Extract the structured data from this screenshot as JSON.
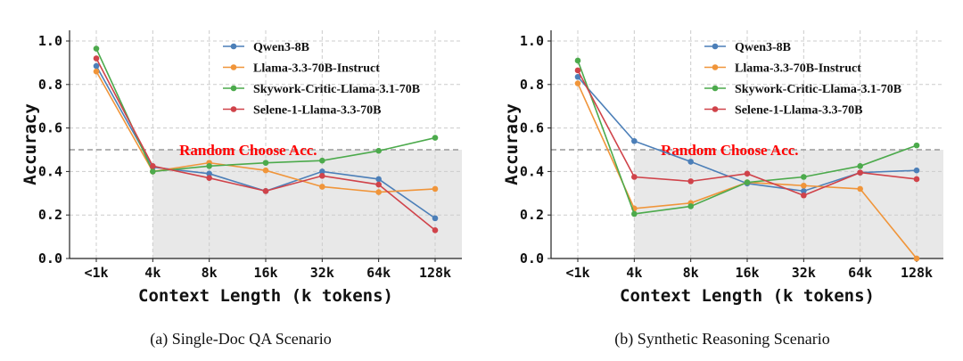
{
  "chart_data": [
    {
      "type": "line",
      "caption": "(a) Single-Doc QA Scenario",
      "xlabel": "Context Length (k tokens)",
      "ylabel": "Accuracy",
      "categories": [
        "<1k",
        "4k",
        "8k",
        "16k",
        "32k",
        "64k",
        "128k"
      ],
      "ylim": [
        0,
        1.0
      ],
      "yticks": [
        "0.0",
        "0.2",
        "0.4",
        "0.6",
        "0.8",
        "1.0"
      ],
      "grid": true,
      "legend_position": "top-right",
      "reference_line": {
        "value": 0.5,
        "label": "Random Choose Acc."
      },
      "series": [
        {
          "name": "Qwen3-8B",
          "color": "#4c7fb8",
          "values": [
            0.885,
            0.42,
            0.39,
            0.31,
            0.4,
            0.365,
            0.185
          ]
        },
        {
          "name": "Llama-3.3-70B-Instruct",
          "color": "#f0953a",
          "values": [
            0.86,
            0.4,
            0.44,
            0.405,
            0.33,
            0.305,
            0.32
          ]
        },
        {
          "name": "Skywork-Critic-Llama-3.1-70B",
          "color": "#4caa4c",
          "values": [
            0.965,
            0.4,
            0.425,
            0.44,
            0.45,
            0.495,
            0.555
          ]
        },
        {
          "name": "Selene-1-Llama-3.3-70B",
          "color": "#d0434a",
          "values": [
            0.92,
            0.425,
            0.37,
            0.31,
            0.38,
            0.34,
            0.13
          ]
        }
      ]
    },
    {
      "type": "line",
      "caption": "(b) Synthetic Reasoning Scenario",
      "xlabel": "Context Length (k tokens)",
      "ylabel": "Accuracy",
      "categories": [
        "<1k",
        "4k",
        "8k",
        "16k",
        "32k",
        "64k",
        "128k"
      ],
      "ylim": [
        0,
        1.0
      ],
      "yticks": [
        "0.0",
        "0.2",
        "0.4",
        "0.6",
        "0.8",
        "1.0"
      ],
      "grid": true,
      "legend_position": "top-right",
      "reference_line": {
        "value": 0.5,
        "label": "Random Choose Acc."
      },
      "series": [
        {
          "name": "Qwen3-8B",
          "color": "#4c7fb8",
          "values": [
            0.835,
            0.54,
            0.445,
            0.345,
            0.31,
            0.395,
            0.405
          ]
        },
        {
          "name": "Llama-3.3-70B-Instruct",
          "color": "#f0953a",
          "values": [
            0.805,
            0.23,
            0.255,
            0.35,
            0.335,
            0.32,
            0.0
          ]
        },
        {
          "name": "Skywork-Critic-Llama-3.1-70B",
          "color": "#4caa4c",
          "values": [
            0.91,
            0.205,
            0.24,
            0.35,
            0.375,
            0.425,
            0.52
          ]
        },
        {
          "name": "Selene-1-Llama-3.3-70B",
          "color": "#d0434a",
          "values": [
            0.865,
            0.375,
            0.355,
            0.39,
            0.29,
            0.395,
            0.365
          ]
        }
      ]
    }
  ]
}
